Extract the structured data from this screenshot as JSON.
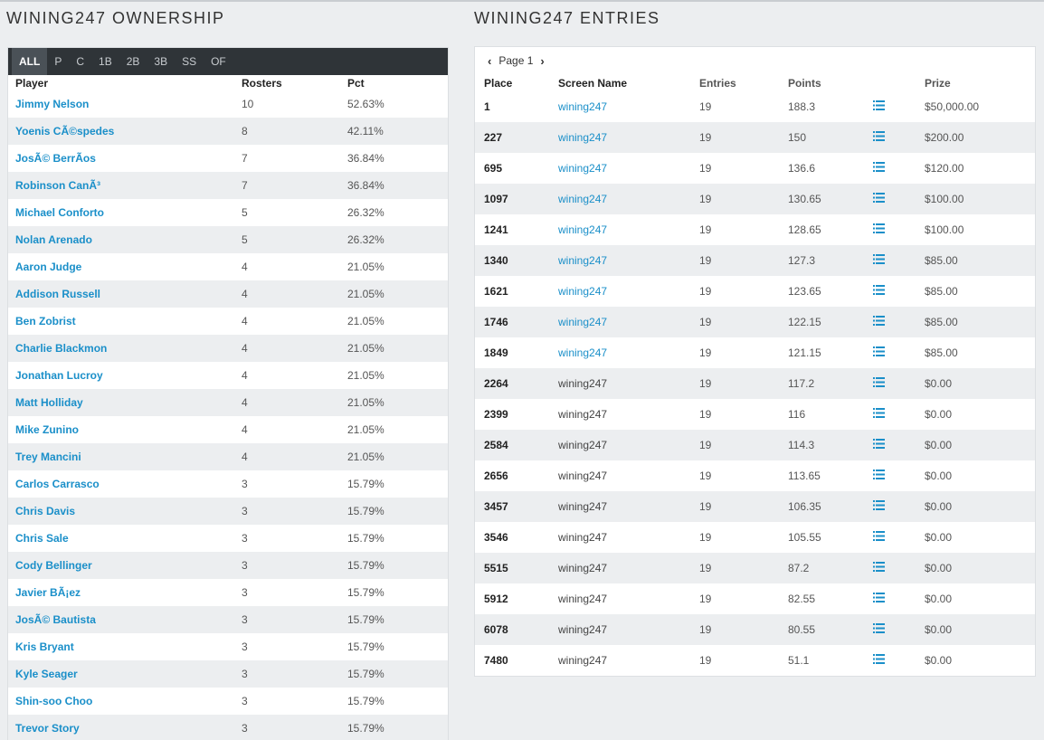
{
  "ownership": {
    "title": "WINING247 OWNERSHIP",
    "tabs": [
      "ALL",
      "P",
      "C",
      "1B",
      "2B",
      "3B",
      "SS",
      "OF"
    ],
    "active_tab": "ALL",
    "headers": {
      "player": "Player",
      "rosters": "Rosters",
      "pct": "Pct"
    },
    "rows": [
      {
        "player": "Jimmy Nelson",
        "rosters": "10",
        "pct": "52.63%"
      },
      {
        "player": "Yoenis CÃ©spedes",
        "rosters": "8",
        "pct": "42.11%"
      },
      {
        "player": "JosÃ© BerrÃ­os",
        "rosters": "7",
        "pct": "36.84%"
      },
      {
        "player": "Robinson CanÃ³",
        "rosters": "7",
        "pct": "36.84%"
      },
      {
        "player": "Michael Conforto",
        "rosters": "5",
        "pct": "26.32%"
      },
      {
        "player": "Nolan Arenado",
        "rosters": "5",
        "pct": "26.32%"
      },
      {
        "player": "Aaron Judge",
        "rosters": "4",
        "pct": "21.05%"
      },
      {
        "player": "Addison Russell",
        "rosters": "4",
        "pct": "21.05%"
      },
      {
        "player": "Ben Zobrist",
        "rosters": "4",
        "pct": "21.05%"
      },
      {
        "player": "Charlie Blackmon",
        "rosters": "4",
        "pct": "21.05%"
      },
      {
        "player": "Jonathan Lucroy",
        "rosters": "4",
        "pct": "21.05%"
      },
      {
        "player": "Matt Holliday",
        "rosters": "4",
        "pct": "21.05%"
      },
      {
        "player": "Mike Zunino",
        "rosters": "4",
        "pct": "21.05%"
      },
      {
        "player": "Trey Mancini",
        "rosters": "4",
        "pct": "21.05%"
      },
      {
        "player": "Carlos Carrasco",
        "rosters": "3",
        "pct": "15.79%"
      },
      {
        "player": "Chris Davis",
        "rosters": "3",
        "pct": "15.79%"
      },
      {
        "player": "Chris Sale",
        "rosters": "3",
        "pct": "15.79%"
      },
      {
        "player": "Cody Bellinger",
        "rosters": "3",
        "pct": "15.79%"
      },
      {
        "player": "Javier BÃ¡ez",
        "rosters": "3",
        "pct": "15.79%"
      },
      {
        "player": "JosÃ© Bautista",
        "rosters": "3",
        "pct": "15.79%"
      },
      {
        "player": "Kris Bryant",
        "rosters": "3",
        "pct": "15.79%"
      },
      {
        "player": "Kyle Seager",
        "rosters": "3",
        "pct": "15.79%"
      },
      {
        "player": "Shin-soo Choo",
        "rosters": "3",
        "pct": "15.79%"
      },
      {
        "player": "Trevor Story",
        "rosters": "3",
        "pct": "15.79%"
      }
    ]
  },
  "entries": {
    "title": "WINING247 ENTRIES",
    "pager": {
      "prev_icon": "chevron-left-icon",
      "label": "Page 1",
      "next_icon": "chevron-right-icon"
    },
    "headers": {
      "place": "Place",
      "screen_name": "Screen Name",
      "entries": "Entries",
      "points": "Points",
      "prize": "Prize"
    },
    "row_icon": "list-icon",
    "link_color": "#1a8fc9",
    "rows": [
      {
        "place": "1",
        "screen_name": "wining247",
        "linked": true,
        "entries": "19",
        "points": "188.3",
        "prize": "$50,000.00"
      },
      {
        "place": "227",
        "screen_name": "wining247",
        "linked": true,
        "entries": "19",
        "points": "150",
        "prize": "$200.00"
      },
      {
        "place": "695",
        "screen_name": "wining247",
        "linked": true,
        "entries": "19",
        "points": "136.6",
        "prize": "$120.00"
      },
      {
        "place": "1097",
        "screen_name": "wining247",
        "linked": true,
        "entries": "19",
        "points": "130.65",
        "prize": "$100.00"
      },
      {
        "place": "1241",
        "screen_name": "wining247",
        "linked": true,
        "entries": "19",
        "points": "128.65",
        "prize": "$100.00"
      },
      {
        "place": "1340",
        "screen_name": "wining247",
        "linked": true,
        "entries": "19",
        "points": "127.3",
        "prize": "$85.00"
      },
      {
        "place": "1621",
        "screen_name": "wining247",
        "linked": true,
        "entries": "19",
        "points": "123.65",
        "prize": "$85.00"
      },
      {
        "place": "1746",
        "screen_name": "wining247",
        "linked": true,
        "entries": "19",
        "points": "122.15",
        "prize": "$85.00"
      },
      {
        "place": "1849",
        "screen_name": "wining247",
        "linked": true,
        "entries": "19",
        "points": "121.15",
        "prize": "$85.00"
      },
      {
        "place": "2264",
        "screen_name": "wining247",
        "linked": false,
        "entries": "19",
        "points": "117.2",
        "prize": "$0.00"
      },
      {
        "place": "2399",
        "screen_name": "wining247",
        "linked": false,
        "entries": "19",
        "points": "116",
        "prize": "$0.00"
      },
      {
        "place": "2584",
        "screen_name": "wining247",
        "linked": false,
        "entries": "19",
        "points": "114.3",
        "prize": "$0.00"
      },
      {
        "place": "2656",
        "screen_name": "wining247",
        "linked": false,
        "entries": "19",
        "points": "113.65",
        "prize": "$0.00"
      },
      {
        "place": "3457",
        "screen_name": "wining247",
        "linked": false,
        "entries": "19",
        "points": "106.35",
        "prize": "$0.00"
      },
      {
        "place": "3546",
        "screen_name": "wining247",
        "linked": false,
        "entries": "19",
        "points": "105.55",
        "prize": "$0.00"
      },
      {
        "place": "5515",
        "screen_name": "wining247",
        "linked": false,
        "entries": "19",
        "points": "87.2",
        "prize": "$0.00"
      },
      {
        "place": "5912",
        "screen_name": "wining247",
        "linked": false,
        "entries": "19",
        "points": "82.55",
        "prize": "$0.00"
      },
      {
        "place": "6078",
        "screen_name": "wining247",
        "linked": false,
        "entries": "19",
        "points": "80.55",
        "prize": "$0.00"
      },
      {
        "place": "7480",
        "screen_name": "wining247",
        "linked": false,
        "entries": "19",
        "points": "51.1",
        "prize": "$0.00"
      }
    ]
  }
}
